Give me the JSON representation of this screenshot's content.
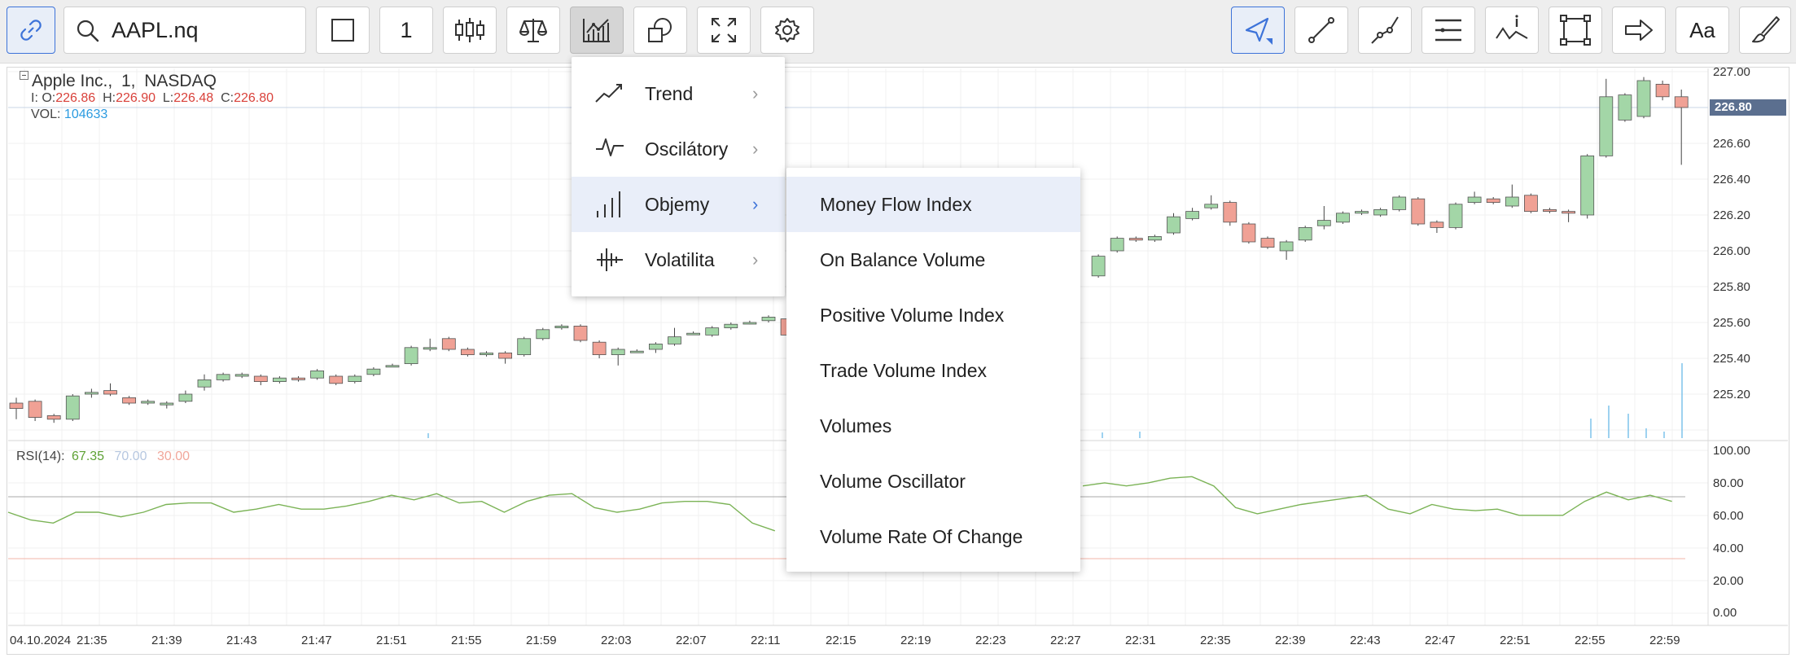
{
  "toolbar": {
    "symbol_value": "AAPL.nq",
    "interval_value": "1",
    "font_button_label": "Aa"
  },
  "chart": {
    "instrument": "Apple Inc.,",
    "interval": "1,",
    "exchange": "NASDAQ",
    "ohlc": {
      "prefix": "I:",
      "o_label": "O:",
      "o_value": "226.86",
      "h_label": "H:",
      "h_value": "226.90",
      "l_label": "L:",
      "l_value": "226.48",
      "c_label": "C:",
      "c_value": "226.80"
    },
    "vol_label": "VOL:",
    "vol_value": "104633",
    "price_ticks": [
      "227.00",
      "226.80",
      "226.60",
      "226.40",
      "226.20",
      "226.00",
      "225.80",
      "225.60",
      "225.40",
      "225.20"
    ],
    "current_price": "226.80",
    "rsi_label": "RSI(14):",
    "rsi_value": "67.35",
    "rsi_upper": "70.00",
    "rsi_lower": "30.00",
    "rsi_ticks": [
      "100.00",
      "80.00",
      "60.00",
      "40.00",
      "20.00",
      "0.00"
    ],
    "time_ticks": [
      "04.10.2024",
      "21:35",
      "21:39",
      "21:43",
      "21:47",
      "21:51",
      "21:55",
      "21:59",
      "22:03",
      "22:07",
      "22:11",
      "22:15",
      "22:19",
      "22:23",
      "22:27",
      "22:31",
      "22:35",
      "22:39",
      "22:43",
      "22:47",
      "22:51",
      "22:55",
      "22:59"
    ],
    "colors": {
      "up": "#a3d6a7",
      "down": "#f0a195",
      "rsi_line": "#7bb356",
      "upper_line": "#a8a8a8",
      "lower_line": "#f3b4a8",
      "price_badge": "#5b6f8f"
    }
  },
  "indicator_menu": {
    "categories": [
      {
        "label": "Trend",
        "icon": "trend-icon"
      },
      {
        "label": "Oscilátory",
        "icon": "oscillator-icon"
      },
      {
        "label": "Objemy",
        "icon": "volume-bars-icon"
      },
      {
        "label": "Volatilita",
        "icon": "volatility-icon"
      }
    ],
    "volume_items": [
      "Money Flow Index",
      "On Balance Volume",
      "Positive Volume Index",
      "Trade Volume Index",
      "Volumes",
      "Volume Oscillator",
      "Volume Rate Of Change"
    ]
  }
}
